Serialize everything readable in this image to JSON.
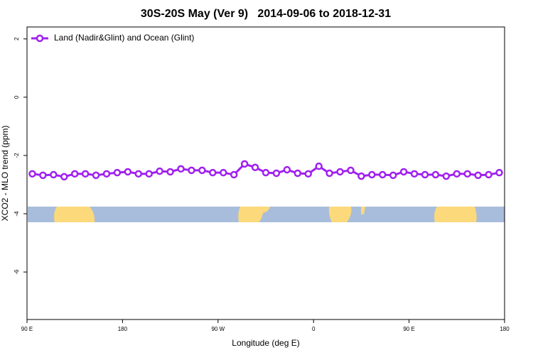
{
  "chart_data": {
    "type": "line",
    "title": "30S-20S May (Ver 9)   2014-09-06 to 2018-12-31",
    "x_label": "Longitude (deg E)",
    "y_label": "XCO2 - MLO trend (ppm)",
    "x": [
      95,
      105,
      115,
      125,
      135,
      145,
      155,
      165,
      175,
      185,
      195,
      205,
      215,
      225,
      235,
      245,
      255,
      265,
      275,
      285,
      295,
      305,
      315,
      325,
      335,
      345,
      355,
      365,
      375,
      385,
      395,
      405,
      415,
      425,
      435,
      445,
      455,
      465,
      475,
      485,
      495,
      505,
      515,
      525,
      535
    ],
    "series": [
      {
        "name": "Land (Nadir&Glint) and Ocean (Glint)",
        "color": "#a020f0",
        "values": [
          -2.63,
          -2.68,
          -2.66,
          -2.73,
          -2.63,
          -2.63,
          -2.68,
          -2.63,
          -2.59,
          -2.56,
          -2.63,
          -2.63,
          -2.54,
          -2.56,
          -2.46,
          -2.51,
          -2.51,
          -2.59,
          -2.59,
          -2.66,
          -2.29,
          -2.41,
          -2.59,
          -2.61,
          -2.49,
          -2.61,
          -2.63,
          -2.37,
          -2.61,
          -2.56,
          -2.51,
          -2.71,
          -2.66,
          -2.66,
          -2.68,
          -2.56,
          -2.63,
          -2.66,
          -2.66,
          -2.71,
          -2.63,
          -2.63,
          -2.68,
          -2.66,
          -2.59
        ]
      }
    ],
    "xlim": [
      90,
      540
    ],
    "xticks": [
      {
        "value": 90,
        "label": "90 E"
      },
      {
        "value": 180,
        "label": "180"
      },
      {
        "value": 270,
        "label": "90 W"
      },
      {
        "value": 360,
        "label": "0"
      },
      {
        "value": 450,
        "label": "90 E"
      },
      {
        "value": 540,
        "label": "180"
      }
    ],
    "ylim": [
      -7.63,
      2.41
    ],
    "yticks": [
      2,
      0,
      -2,
      -4,
      -6
    ],
    "legend": "top-left"
  }
}
